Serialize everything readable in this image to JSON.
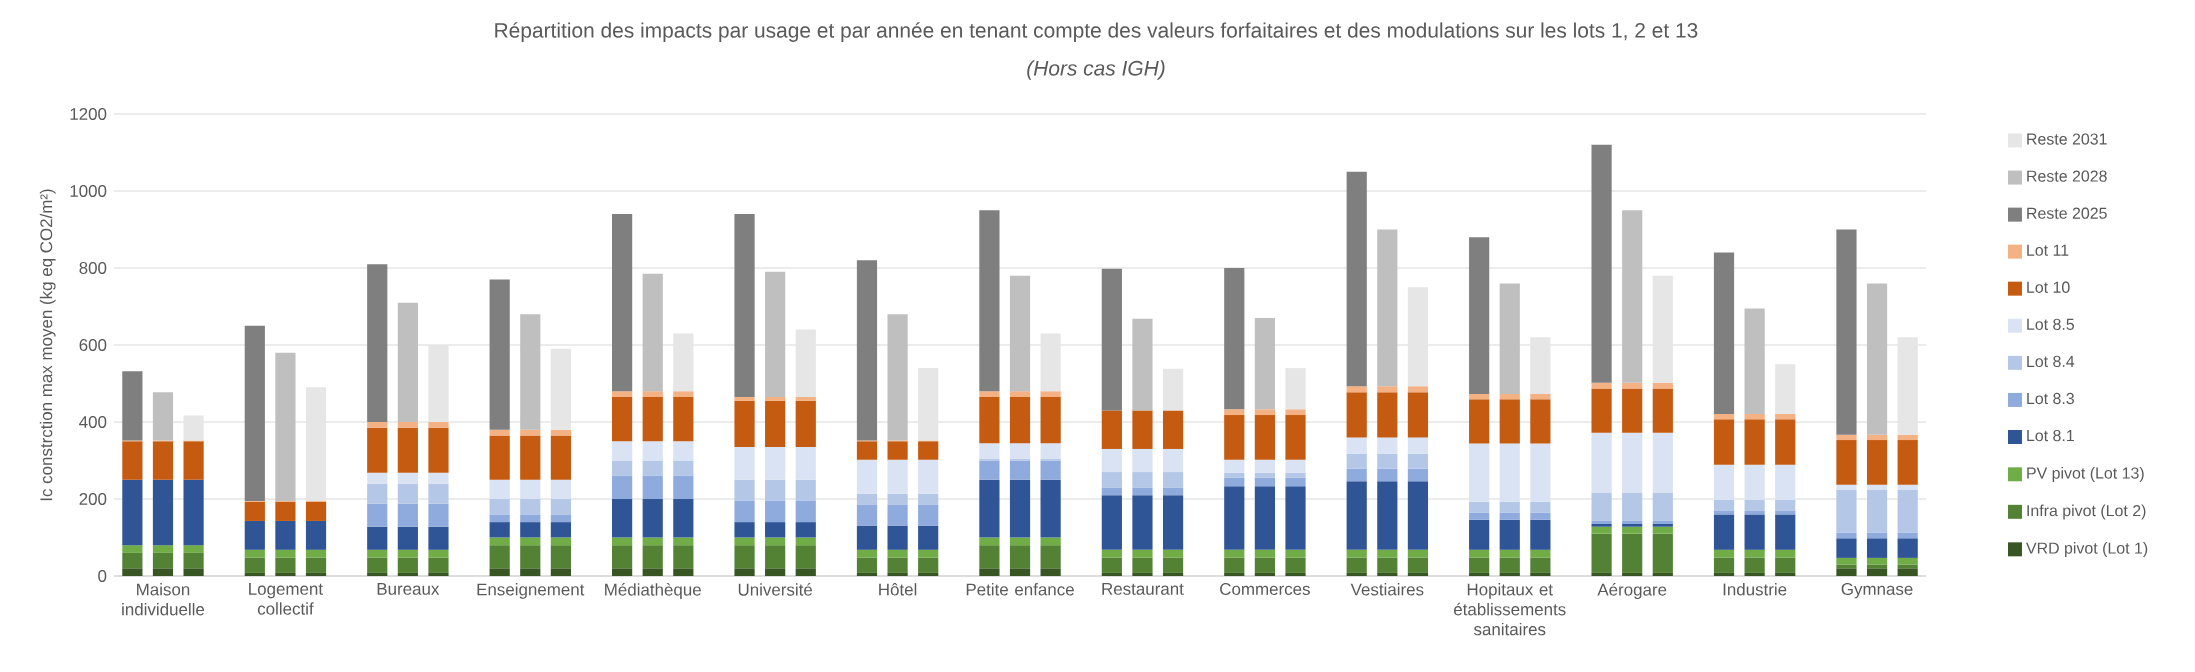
{
  "chart_data": {
    "type": "bar",
    "stacked": true,
    "title": "Répartition des impacts par usage et par année en tenant compte des valeurs forfaitaires et des modulations sur les lots 1, 2 et 13",
    "subtitle": "(Hors cas IGH)",
    "ylabel": "Ic constrction max moyen (kg eq CO2/m²)",
    "categories": [
      null,
      "Maison individuelle",
      null,
      null,
      null,
      "Logement collectif",
      null,
      null,
      null,
      "Bureaux",
      null,
      null,
      null,
      "Enseignement",
      null,
      null,
      null,
      "Médiathèque",
      null,
      null,
      null,
      "Université",
      null,
      null,
      null,
      "Hôtel",
      null,
      null,
      null,
      "Petite enfance",
      null,
      null,
      null,
      "Restaurant",
      null,
      null,
      null,
      "Commerces",
      null,
      null,
      null,
      "Vestiaires",
      null,
      null,
      null,
      "Hopitaux et établissements sanitaires",
      null,
      null,
      null,
      "Aérogare",
      null,
      null,
      null,
      "Industrie",
      null,
      null,
      null,
      "Gymnase",
      null
    ],
    "series": [
      {
        "name": "VRD pivot (Lot 1)",
        "color": "#375623",
        "values": [
          20,
          20,
          20,
          null,
          8,
          8,
          8,
          null,
          8,
          8,
          8,
          null,
          20,
          20,
          20,
          null,
          20,
          20,
          20,
          null,
          20,
          20,
          20,
          null,
          8,
          8,
          8,
          null,
          20,
          20,
          20,
          null,
          8,
          8,
          8,
          null,
          8,
          8,
          8,
          null,
          8,
          8,
          8,
          null,
          8,
          8,
          8,
          null,
          8,
          8,
          8,
          null,
          8,
          8,
          8,
          null,
          20,
          20,
          20
        ]
      },
      {
        "name": "Infra pivot (Lot 2)",
        "color": "#548235",
        "values": [
          40,
          40,
          40,
          null,
          40,
          40,
          40,
          null,
          40,
          40,
          40,
          null,
          60,
          60,
          60,
          null,
          60,
          60,
          60,
          null,
          60,
          60,
          60,
          null,
          40,
          40,
          40,
          null,
          60,
          60,
          60,
          null,
          40,
          40,
          40,
          null,
          40,
          40,
          40,
          null,
          40,
          40,
          40,
          null,
          40,
          40,
          40,
          null,
          102,
          102,
          102,
          null,
          40,
          40,
          40,
          null,
          10,
          10,
          10
        ]
      },
      {
        "name": "PV pivot (Lot 13)",
        "color": "#70ad47",
        "values": [
          20,
          20,
          20,
          null,
          20,
          20,
          20,
          null,
          20,
          20,
          20,
          null,
          20,
          20,
          20,
          null,
          20,
          20,
          20,
          null,
          20,
          20,
          20,
          null,
          20,
          20,
          20,
          null,
          20,
          20,
          20,
          null,
          20,
          20,
          20,
          null,
          20,
          20,
          20,
          null,
          20,
          20,
          20,
          null,
          20,
          20,
          20,
          null,
          18,
          18,
          18,
          null,
          20,
          20,
          20,
          null,
          17,
          17,
          17
        ]
      },
      {
        "name": "Lot 8.1",
        "color": "#2f5597",
        "values": [
          170,
          170,
          170,
          null,
          75,
          75,
          75,
          null,
          60,
          60,
          60,
          null,
          40,
          40,
          40,
          null,
          100,
          100,
          100,
          null,
          40,
          40,
          40,
          null,
          63,
          63,
          63,
          null,
          150,
          150,
          150,
          null,
          142,
          142,
          142,
          null,
          165,
          165,
          165,
          null,
          178,
          178,
          178,
          null,
          78,
          78,
          78,
          null,
          7,
          7,
          7,
          null,
          92,
          92,
          92,
          null,
          51,
          51,
          51
        ]
      },
      {
        "name": "Lot 8.3",
        "color": "#8faadc",
        "values": [
          null,
          null,
          null,
          null,
          null,
          null,
          null,
          null,
          60,
          60,
          60,
          null,
          20,
          20,
          20,
          null,
          60,
          60,
          60,
          null,
          55,
          55,
          55,
          null,
          55,
          55,
          55,
          null,
          50,
          50,
          50,
          null,
          20,
          20,
          20,
          null,
          22,
          22,
          22,
          null,
          33,
          33,
          33,
          null,
          19,
          19,
          19,
          null,
          8,
          8,
          8,
          null,
          9,
          9,
          9,
          null,
          15,
          15,
          15
        ]
      },
      {
        "name": "Lot 8.4",
        "color": "#b4c7e7",
        "values": [
          null,
          null,
          null,
          null,
          null,
          null,
          null,
          null,
          52,
          52,
          52,
          null,
          40,
          40,
          40,
          null,
          40,
          40,
          40,
          null,
          55,
          55,
          55,
          null,
          28,
          28,
          28,
          null,
          5,
          5,
          5,
          null,
          40,
          40,
          40,
          null,
          13,
          13,
          13,
          null,
          39,
          39,
          39,
          null,
          28,
          28,
          28,
          null,
          74,
          74,
          74,
          null,
          29,
          29,
          29,
          null,
          112,
          112,
          112
        ]
      },
      {
        "name": "Lot 8.5",
        "color": "#dae3f3",
        "values": [
          null,
          null,
          null,
          null,
          null,
          null,
          null,
          null,
          28,
          28,
          28,
          null,
          50,
          50,
          50,
          null,
          50,
          50,
          50,
          null,
          85,
          85,
          85,
          null,
          88,
          88,
          88,
          null,
          40,
          40,
          40,
          null,
          60,
          60,
          60,
          null,
          34,
          34,
          34,
          null,
          42,
          42,
          42,
          null,
          151,
          151,
          151,
          null,
          155,
          155,
          155,
          null,
          91,
          91,
          91,
          null,
          12,
          12,
          12
        ]
      },
      {
        "name": "Lot 10",
        "color": "#c55a11",
        "values": [
          100,
          100,
          100,
          null,
          50,
          50,
          50,
          null,
          117,
          117,
          117,
          null,
          115,
          115,
          115,
          null,
          115,
          115,
          115,
          null,
          120,
          120,
          120,
          null,
          48,
          48,
          48,
          null,
          120,
          120,
          120,
          null,
          100,
          100,
          100,
          null,
          116,
          116,
          116,
          null,
          117,
          117,
          117,
          null,
          115,
          115,
          115,
          null,
          115,
          115,
          115,
          null,
          118,
          118,
          118,
          null,
          116,
          116,
          116
        ]
      },
      {
        "name": "Lot 11",
        "color": "#f4b183",
        "values": [
          2,
          2,
          2,
          null,
          2,
          2,
          2,
          null,
          15,
          15,
          15,
          null,
          15,
          15,
          15,
          null,
          15,
          15,
          15,
          null,
          10,
          10,
          10,
          null,
          2,
          2,
          2,
          null,
          15,
          15,
          15,
          null,
          null,
          null,
          null,
          null,
          15,
          15,
          15,
          null,
          16,
          16,
          16,
          null,
          14,
          14,
          14,
          null,
          15,
          15,
          15,
          null,
          14,
          14,
          14,
          null,
          14,
          14,
          14
        ]
      },
      {
        "name": "Reste 2025",
        "color": "#7f7f7f",
        "values": [
          180,
          null,
          null,
          null,
          455,
          null,
          null,
          null,
          410,
          null,
          null,
          null,
          390,
          null,
          null,
          null,
          460,
          null,
          null,
          null,
          475,
          null,
          null,
          null,
          468,
          null,
          null,
          null,
          470,
          null,
          null,
          null,
          368,
          null,
          null,
          null,
          367,
          null,
          null,
          null,
          557,
          null,
          null,
          null,
          407,
          null,
          null,
          null,
          618,
          null,
          null,
          null,
          419,
          null,
          null,
          null,
          533,
          null,
          null
        ]
      },
      {
        "name": "Reste 2028",
        "color": "#bfbfbf",
        "values": [
          null,
          125,
          null,
          null,
          null,
          385,
          null,
          null,
          null,
          310,
          null,
          null,
          null,
          300,
          null,
          null,
          null,
          305,
          null,
          null,
          null,
          325,
          null,
          null,
          null,
          328,
          null,
          null,
          null,
          300,
          null,
          null,
          null,
          238,
          null,
          null,
          null,
          237,
          null,
          null,
          null,
          407,
          null,
          null,
          null,
          287,
          null,
          null,
          null,
          448,
          null,
          null,
          null,
          274,
          null,
          null,
          null,
          393,
          null
        ]
      },
      {
        "name": "Reste 2031",
        "color": "#e6e6e6",
        "values": [
          null,
          null,
          65,
          null,
          null,
          null,
          295,
          null,
          null,
          null,
          200,
          null,
          null,
          null,
          210,
          null,
          null,
          null,
          150,
          null,
          null,
          null,
          175,
          null,
          null,
          null,
          188,
          null,
          null,
          null,
          150,
          null,
          null,
          null,
          108,
          null,
          null,
          null,
          107,
          null,
          null,
          null,
          257,
          null,
          null,
          null,
          147,
          null,
          null,
          null,
          278,
          null,
          null,
          null,
          129,
          null,
          null,
          null,
          253
        ]
      }
    ],
    "ylim": [
      0,
      1200
    ],
    "yticks": [
      0,
      200,
      400,
      600,
      800,
      1000,
      1200
    ],
    "grid": "y",
    "legend": "right"
  }
}
